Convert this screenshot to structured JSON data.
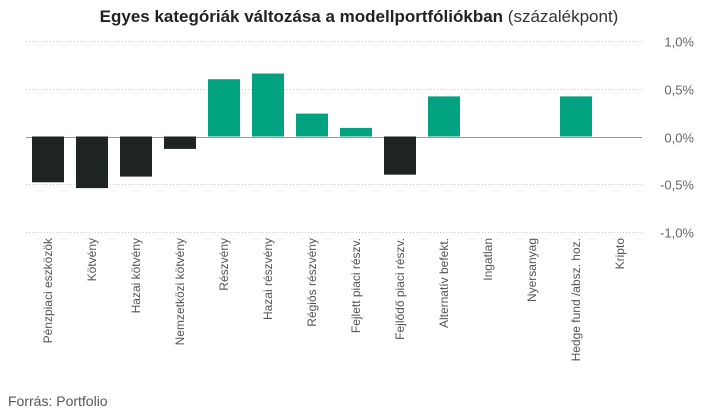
{
  "title": "Egyes kategóriák változása a modellportfóliókban",
  "title_unit": "(százalékpont)",
  "source": "Forrás: Portfolio",
  "colors": {
    "positive": "#00A27F",
    "negative": "#1E2421",
    "grid": "#CCCCCC",
    "zero_line": "#999999",
    "tick_text": "#666666",
    "category_text": "#555555"
  },
  "chart_data": {
    "type": "bar",
    "title": "Egyes kategóriák változása a modellportfóliókban (százalékpont)",
    "xlabel": "",
    "ylabel": "",
    "ylim": [
      -1.0,
      1.0
    ],
    "y_ticks": [
      {
        "value": 1.0,
        "label": "1,0%"
      },
      {
        "value": 0.5,
        "label": "0,5%"
      },
      {
        "value": 0.0,
        "label": "0,0%"
      },
      {
        "value": -0.5,
        "label": "-0,5%"
      },
      {
        "value": -1.0,
        "label": "-1,0%"
      }
    ],
    "grid": true,
    "legend": "none",
    "categories": [
      "Pénzpiaci eszközök",
      "Kötvény",
      "Hazai kötvény",
      "Nemzetközi kötvény",
      "Részvény",
      "Hazai részvény",
      "Régiós részvény",
      "Fejlett piaci részv.",
      "Fejlődő piaci részv.",
      "Alternatív befekt.",
      "Ingatlan",
      "Nyersanyag",
      "Hedge fund /absz. hoz.",
      "Kripto"
    ],
    "values": [
      -0.48,
      -0.54,
      -0.42,
      -0.13,
      0.6,
      0.66,
      0.24,
      0.09,
      -0.4,
      0.42,
      0,
      0,
      0.42,
      0
    ]
  }
}
